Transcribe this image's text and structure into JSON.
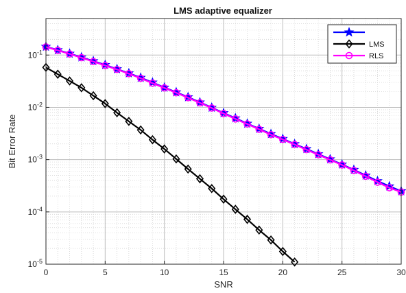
{
  "chart_data": {
    "type": "line",
    "title": "LMS adaptive equalizer",
    "xlabel": "SNR",
    "ylabel": "Bit Error Rate",
    "xlim": [
      0,
      30
    ],
    "ylim": [
      1e-05,
      0.5
    ],
    "yscale": "log",
    "grid": true,
    "minor_grid": true,
    "legend_position": "top-right",
    "x_ticks": [
      0,
      5,
      10,
      15,
      20,
      25,
      30
    ],
    "y_ticks": [
      {
        "value": 1e-05,
        "base": "10",
        "exp": "-5"
      },
      {
        "value": 0.0001,
        "base": "10",
        "exp": "-4"
      },
      {
        "value": 0.001,
        "base": "10",
        "exp": "-3"
      },
      {
        "value": 0.01,
        "base": "10",
        "exp": "-2"
      },
      {
        "value": 0.1,
        "base": "10",
        "exp": "-1"
      }
    ],
    "legend": [
      {
        "label": "",
        "color": "#0000ff",
        "marker": "star"
      },
      {
        "label": "LMS",
        "color": "#000000",
        "marker": "diamond"
      },
      {
        "label": "RLS",
        "color": "#ff00ff",
        "marker": "circle"
      }
    ],
    "series": [
      {
        "color": "#000000",
        "marker": "diamond",
        "x": [
          0,
          1,
          2,
          3,
          4,
          5,
          6,
          7,
          8,
          9,
          10,
          11,
          12,
          13,
          14,
          15,
          16,
          17,
          18,
          19,
          20,
          21
        ],
        "values": [
          0.058,
          0.043,
          0.032,
          0.0237,
          0.0167,
          0.0118,
          0.0079,
          0.0054,
          0.0037,
          0.0024,
          0.0016,
          0.00103,
          0.00066,
          0.00043,
          0.00028,
          0.000175,
          0.000112,
          7.2e-05,
          4.5e-05,
          2.9e-05,
          1.75e-05,
          1.1e-05
        ]
      },
      {
        "color": "#0000ff",
        "marker": "star",
        "x": [
          0,
          1,
          2,
          3,
          4,
          5,
          6,
          7,
          8,
          9,
          10,
          11,
          12,
          13,
          14,
          15,
          16,
          17,
          18,
          19,
          20,
          21,
          22,
          23,
          24,
          25,
          26,
          27,
          28,
          29,
          30
        ],
        "values": [
          0.145,
          0.125,
          0.107,
          0.091,
          0.077,
          0.065,
          0.054,
          0.045,
          0.037,
          0.03,
          0.024,
          0.0195,
          0.0157,
          0.0125,
          0.0099,
          0.0078,
          0.0062,
          0.0049,
          0.0039,
          0.0031,
          0.0025,
          0.00199,
          0.0016,
          0.00128,
          0.00102,
          0.00081,
          0.00064,
          0.0005,
          0.00039,
          0.00031,
          0.00025
        ]
      },
      {
        "color": "#ff00ff",
        "marker": "circle",
        "x": [
          0,
          1,
          2,
          3,
          4,
          5,
          6,
          7,
          8,
          9,
          10,
          11,
          12,
          13,
          14,
          15,
          16,
          17,
          18,
          19,
          20,
          21,
          22,
          23,
          24,
          25,
          26,
          27,
          28,
          29,
          30
        ],
        "values": [
          0.143,
          0.123,
          0.105,
          0.089,
          0.075,
          0.063,
          0.053,
          0.044,
          0.036,
          0.029,
          0.0235,
          0.019,
          0.0153,
          0.0122,
          0.0097,
          0.0076,
          0.006,
          0.0048,
          0.0038,
          0.003,
          0.00243,
          0.00194,
          0.00155,
          0.00124,
          0.00099,
          0.00079,
          0.00062,
          0.00048,
          0.00037,
          0.00029,
          0.00024
        ]
      }
    ]
  }
}
